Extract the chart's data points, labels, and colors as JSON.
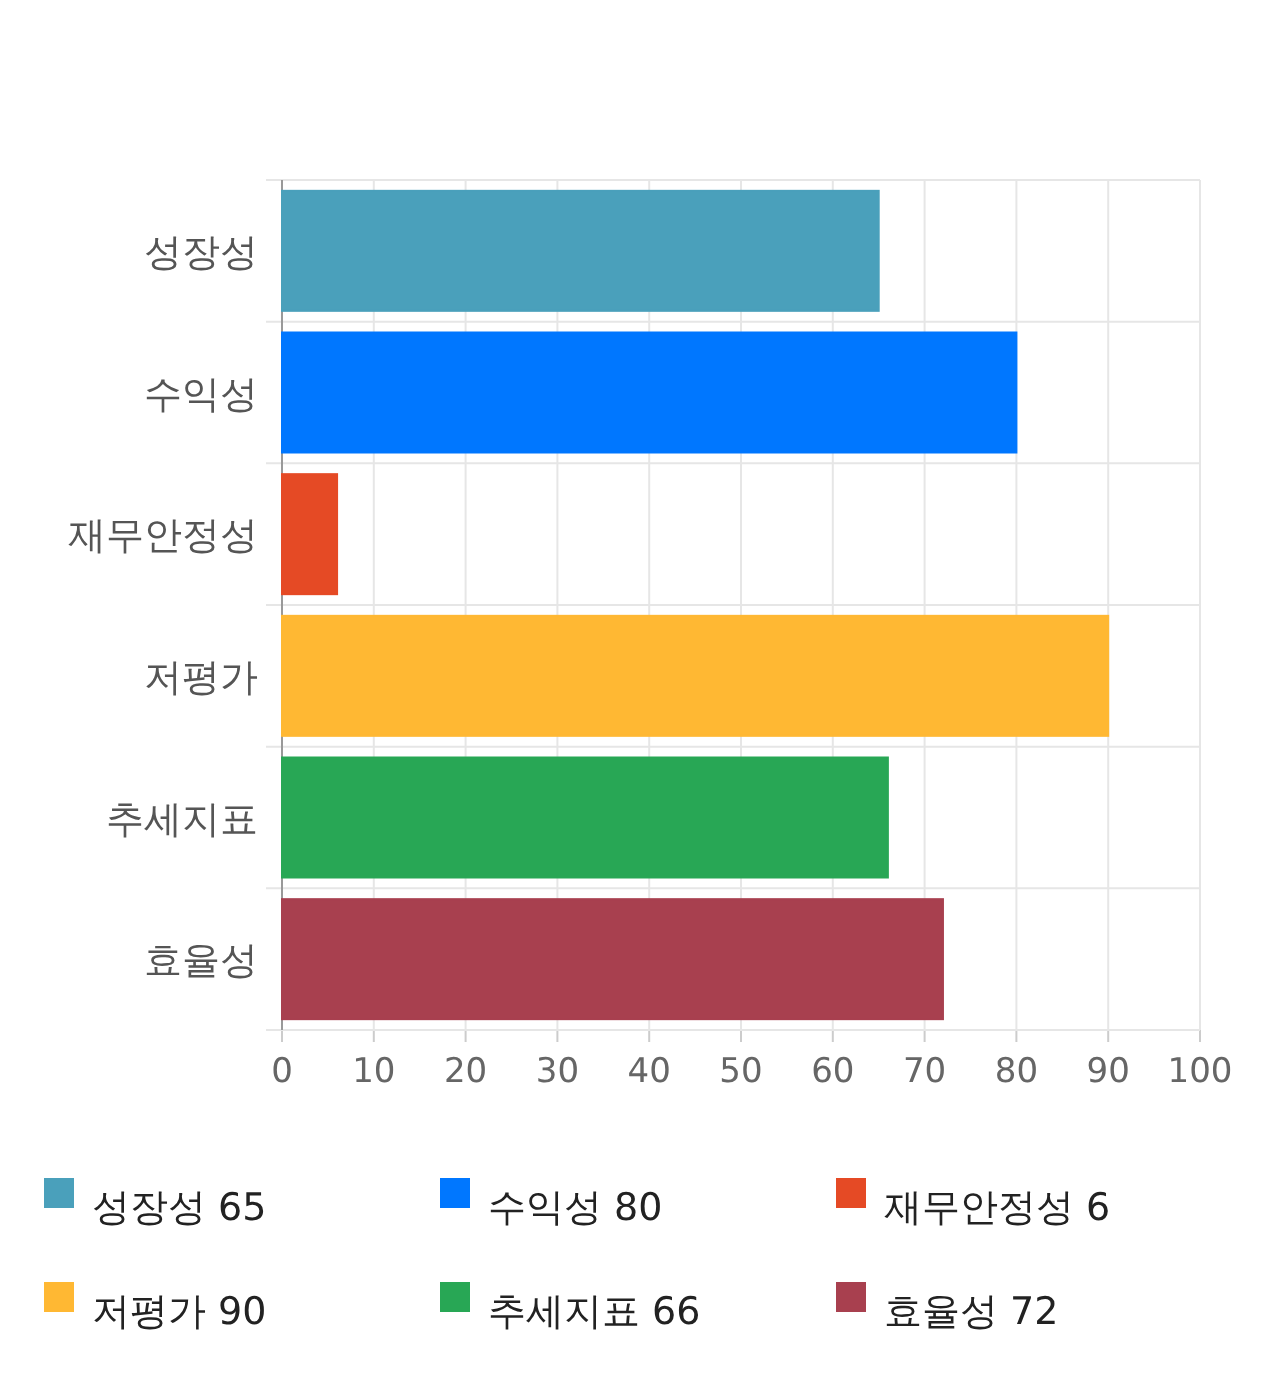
{
  "chart_data": {
    "type": "bar",
    "orientation": "horizontal",
    "categories": [
      "성장성",
      "수익성",
      "재무안정성",
      "저평가",
      "추세지표",
      "효율성"
    ],
    "series": [
      {
        "name": "성장성 65",
        "color": "#4aa0bb",
        "values": [
          65,
          null,
          null,
          null,
          null,
          null
        ]
      },
      {
        "name": "수익성 80",
        "color": "#0077ff",
        "values": [
          null,
          80,
          null,
          null,
          null,
          null
        ]
      },
      {
        "name": "재무안정성 6",
        "color": "#e54a25",
        "values": [
          null,
          null,
          6,
          null,
          null,
          null
        ]
      },
      {
        "name": "저평가 90",
        "color": "#ffb833",
        "values": [
          null,
          null,
          null,
          90,
          null,
          null
        ]
      },
      {
        "name": "추세지표 66",
        "color": "#28a755",
        "values": [
          null,
          null,
          null,
          null,
          66,
          null
        ]
      },
      {
        "name": "효율성 72",
        "color": "#a8404f",
        "values": [
          null,
          null,
          null,
          null,
          null,
          72
        ]
      }
    ],
    "xlim": [
      0,
      100
    ],
    "xticks": [
      0,
      10,
      20,
      30,
      40,
      50,
      60,
      70,
      80,
      90,
      100
    ],
    "grid": true,
    "legend": "bottom"
  }
}
